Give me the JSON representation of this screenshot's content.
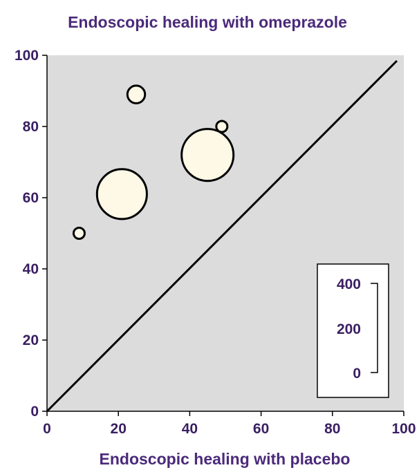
{
  "colors": {
    "plot_bg": "#dcdcdc",
    "bubble_fill": "#fdf9e6",
    "stroke": "#000000",
    "text": "#3a1f62"
  },
  "chart_data": {
    "type": "scatter",
    "title": "Endoscopic healing with omeprazole",
    "xlabel": "Endoscopic healing with placebo",
    "ylabel": "",
    "xlim": [
      0,
      100
    ],
    "ylim": [
      0,
      100
    ],
    "x_ticks": [
      "0",
      "20",
      "40",
      "60",
      "80",
      "100"
    ],
    "y_ticks": [
      "0",
      "20",
      "40",
      "60",
      "80",
      "100"
    ],
    "grid": false,
    "reference_line": {
      "from": [
        0,
        0
      ],
      "to": [
        100,
        100
      ]
    },
    "size_legend": {
      "position": "bottom-right",
      "ticks": [
        "400",
        "200",
        "0"
      ],
      "range": [
        0,
        400
      ]
    },
    "points": [
      {
        "x": 9,
        "y": 50,
        "size": 15
      },
      {
        "x": 21,
        "y": 61,
        "size": 360
      },
      {
        "x": 25,
        "y": 89,
        "size": 45
      },
      {
        "x": 45,
        "y": 72,
        "size": 390
      },
      {
        "x": 49,
        "y": 80,
        "size": 12
      }
    ]
  }
}
